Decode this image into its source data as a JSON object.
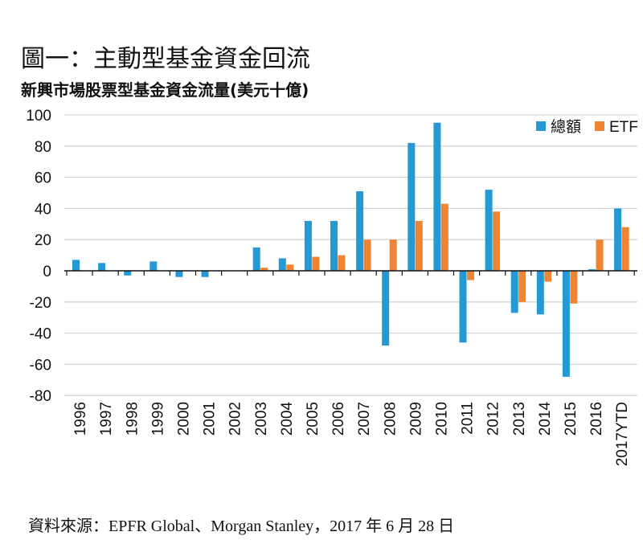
{
  "chart_data": {
    "type": "bar",
    "title": "圖一：主動型基金資金回流",
    "subtitle": "新興市場股票型基金資金流量(美元十億)",
    "categories": [
      "1996",
      "1997",
      "1998",
      "1999",
      "2000",
      "2001",
      "2002",
      "2003",
      "2004",
      "2005",
      "2006",
      "2007",
      "2008",
      "2009",
      "2010",
      "2011",
      "2012",
      "2013",
      "2014",
      "2015",
      "2016",
      "2017YTD"
    ],
    "series": [
      {
        "name": "總額",
        "color": "#2499d5",
        "values": [
          7,
          5,
          -3,
          6,
          -4,
          -4,
          0,
          15,
          8,
          32,
          32,
          51,
          -48,
          82,
          95,
          -46,
          52,
          -27,
          -28,
          -68,
          1,
          40
        ]
      },
      {
        "name": "ETF",
        "color": "#ef8432",
        "values": [
          0,
          0,
          0,
          0,
          0,
          0,
          0,
          2,
          4,
          9,
          10,
          20,
          20,
          32,
          43,
          -6,
          38,
          -20,
          -7,
          -21,
          20,
          28
        ]
      }
    ],
    "ylim": [
      -80,
      100
    ],
    "yticks": [
      100,
      80,
      60,
      40,
      20,
      0,
      -20,
      -40,
      -60,
      -80
    ],
    "grid": true,
    "legend_position": "top-right",
    "source": "資料來源：EPFR Global、Morgan Stanley，2017 年 6 月 28 日"
  }
}
